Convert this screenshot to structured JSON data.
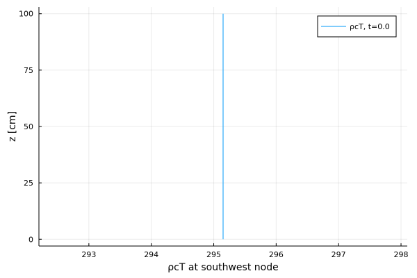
{
  "chart_data": {
    "type": "line",
    "title": "",
    "xlabel": "ρcT at southwest node",
    "ylabel": "z [cm]",
    "xlim": [
      292.2,
      298.1
    ],
    "ylim": [
      -3,
      103
    ],
    "x_ticks": [
      293,
      294,
      295,
      296,
      297,
      298
    ],
    "y_ticks": [
      0,
      25,
      50,
      75,
      100
    ],
    "x_tick_labels": [
      "293",
      "294",
      "295",
      "296",
      "297",
      "298"
    ],
    "y_tick_labels": [
      "0",
      "25",
      "50",
      "75",
      "100"
    ],
    "grid": true,
    "legend_position": "top-right",
    "series": [
      {
        "name": "ρcT, t=0.0",
        "color": "#009AFA",
        "x": [
          295.15,
          295.15,
          295.15,
          295.15,
          295.15
        ],
        "y": [
          0,
          25,
          50,
          75,
          100
        ]
      }
    ]
  }
}
